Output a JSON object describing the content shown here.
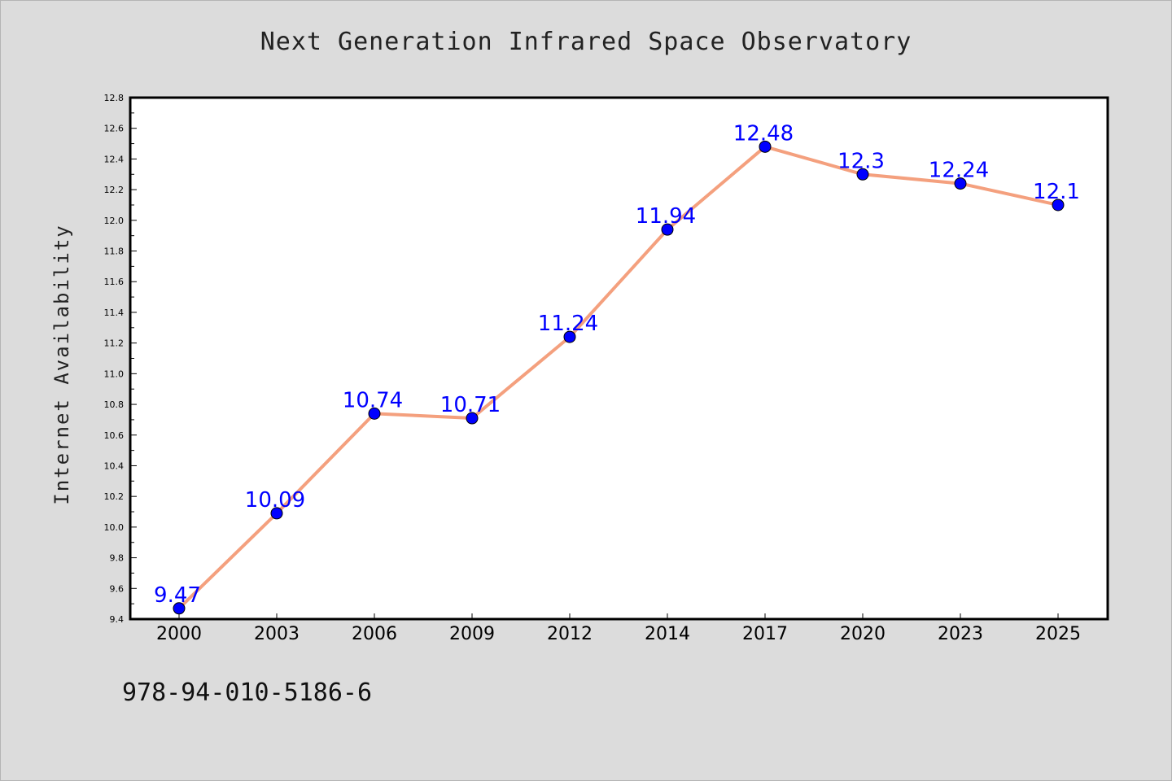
{
  "chart_data": {
    "type": "line",
    "title": "Next Generation Infrared Space Observatory",
    "xlabel": "",
    "ylabel": "Internet Availability",
    "categories": [
      "2000",
      "2003",
      "2006",
      "2009",
      "2012",
      "2014",
      "2017",
      "2020",
      "2023",
      "2025"
    ],
    "series": [
      {
        "values": [
          9.47,
          10.09,
          10.74,
          10.71,
          11.24,
          11.94,
          12.48,
          12.3,
          12.24,
          12.1
        ],
        "line_color": "#f4a07e",
        "marker_color": "#0000ff"
      }
    ],
    "data_labels": [
      "9.47",
      "10.09",
      "10.74",
      "10.71",
      "11.24",
      "11.94",
      "12.48",
      "12.3",
      "12.24",
      "12.1"
    ],
    "ylim": [
      9.4,
      12.8
    ],
    "y_ticks": [
      "9.4",
      "9.6",
      "9.8",
      "10.0",
      "10.2",
      "10.4",
      "10.6",
      "10.8",
      "11.0",
      "11.2",
      "11.4",
      "11.6",
      "11.8",
      "12.0",
      "12.2",
      "12.4",
      "12.6",
      "12.8"
    ],
    "grid": false,
    "legend": "none",
    "label_color": "#0000ff"
  },
  "footer": {
    "isbn": "978-94-010-5186-6"
  }
}
